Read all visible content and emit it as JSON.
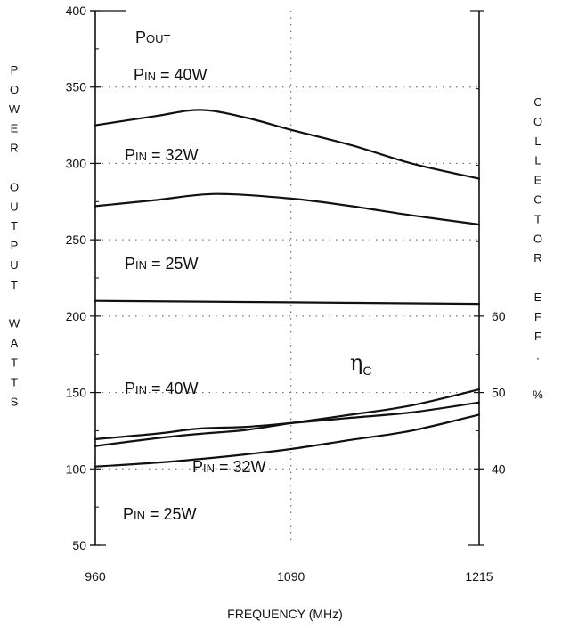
{
  "chart_data": {
    "type": "line",
    "title": "",
    "xlabel": "FREQUENCY (MHz)",
    "ylabel": "POWER OUTPUT WATTS",
    "y2label": "COLLECTOR EFF. %",
    "xlim": [
      960,
      1215
    ],
    "ylim": [
      50,
      400
    ],
    "y2lim": [
      30,
      60
    ],
    "x_ticks": [
      960,
      1090,
      1215
    ],
    "y_ticks": [
      50,
      100,
      150,
      200,
      250,
      300,
      350,
      400
    ],
    "y2_ticks": [
      40,
      50,
      60
    ],
    "grid": true,
    "groups": {
      "pout": {
        "label": "POUT"
      },
      "eta": {
        "symbol": "η",
        "subscript": "C"
      }
    },
    "series": [
      {
        "name": "PIN = 40W",
        "label_main": "P",
        "label_sub": "IN",
        "label_rest": " = 40W",
        "group": "pout",
        "axis": "left",
        "x": [
          960,
          1000,
          1030,
          1060,
          1090,
          1130,
          1170,
          1215
        ],
        "y": [
          325,
          331,
          335,
          330,
          322,
          312,
          300,
          290
        ]
      },
      {
        "name": "PIN = 32W",
        "label_main": "P",
        "label_sub": "IN",
        "label_rest": " = 32W",
        "group": "pout",
        "axis": "left",
        "x": [
          960,
          1000,
          1040,
          1090,
          1130,
          1170,
          1215
        ],
        "y": [
          272,
          276,
          280,
          277,
          272,
          266,
          260
        ]
      },
      {
        "name": "PIN = 25W",
        "label_main": "P",
        "label_sub": "IN",
        "label_rest": " = 25W",
        "group": "pout",
        "axis": "left",
        "x": [
          960,
          1090,
          1215
        ],
        "y": [
          210,
          209,
          208
        ]
      },
      {
        "name": "PIN = 40W",
        "label_main": "P",
        "label_sub": "IN",
        "label_rest": " = 40W",
        "group": "eta",
        "axis": "right",
        "x": [
          960,
          1000,
          1030,
          1060,
          1090,
          1130,
          1170,
          1215
        ],
        "y": [
          43.9,
          44.6,
          45.3,
          45.5,
          46.0,
          46.7,
          47.4,
          48.7
        ]
      },
      {
        "name": "PIN = 32W",
        "label_main": "P",
        "label_sub": "IN",
        "label_rest": " = 32W",
        "group": "eta",
        "axis": "right",
        "x": [
          960,
          1000,
          1030,
          1060,
          1090,
          1130,
          1170,
          1215
        ],
        "y": [
          43.0,
          44.0,
          44.6,
          45.1,
          46.0,
          47.1,
          48.3,
          50.4
        ]
      },
      {
        "name": "PIN = 25W",
        "label_main": "P",
        "label_sub": "IN",
        "label_rest": " = 25W",
        "group": "eta",
        "axis": "right",
        "x": [
          960,
          1000,
          1030,
          1060,
          1090,
          1130,
          1170,
          1215
        ],
        "y": [
          40.3,
          40.8,
          41.3,
          41.9,
          42.6,
          43.8,
          45.0,
          47.1
        ]
      }
    ]
  }
}
